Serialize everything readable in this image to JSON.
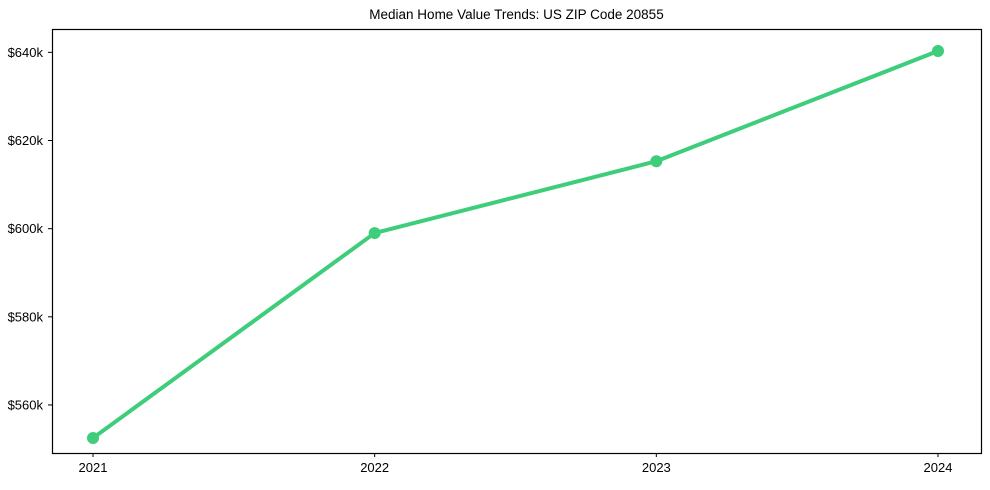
{
  "figure": {
    "background": "#ffffff"
  },
  "chart_data": {
    "type": "line",
    "title": "Median Home Value Trends: US ZIP Code 20855",
    "x": [
      "2021",
      "2022",
      "2023",
      "2024"
    ],
    "values": [
      552500,
      599000,
      615300,
      640300
    ],
    "series": [
      {
        "name": "Median Home Value",
        "values": [
          552500,
          599000,
          615300,
          640300
        ]
      }
    ],
    "xlabel": "",
    "ylabel": "",
    "ylim": [
      549100,
      645300
    ],
    "y_ticks": [
      {
        "value": 560000,
        "label": "$560k"
      },
      {
        "value": 580000,
        "label": "$580k"
      },
      {
        "value": 600000,
        "label": "$600k"
      },
      {
        "value": 620000,
        "label": "$620k"
      },
      {
        "value": 640000,
        "label": "$640k"
      }
    ],
    "x_tick_labels": [
      "2021",
      "2022",
      "2023",
      "2024"
    ],
    "grid": false,
    "legend_position": "none",
    "line_color": "#3ecd7b",
    "marker": "circle",
    "marker_radius": 6,
    "line_width": 4,
    "text_color": "#000000",
    "spine_color": "#000000"
  }
}
